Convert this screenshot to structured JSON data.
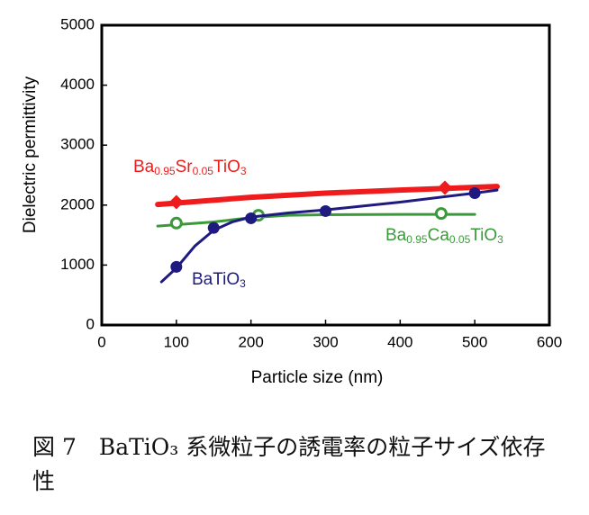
{
  "chart_data": {
    "type": "line",
    "xlabel": "Particle size (nm)",
    "ylabel": "Dielectric permittivity",
    "xlim": [
      0,
      600
    ],
    "xticks": [
      0,
      100,
      200,
      300,
      400,
      500,
      600
    ],
    "ylim": [
      0,
      5000
    ],
    "yticks": [
      0,
      1000,
      2000,
      3000,
      4000,
      5000
    ],
    "series": [
      {
        "name": "Ba0.95Sr0.05TiO3",
        "color": "#ee1c1c",
        "marker": "diamond",
        "x": [
          100,
          460
        ],
        "values": [
          2050,
          2290
        ],
        "curve": {
          "x": [
            75,
            200,
            300,
            400,
            530
          ],
          "values": [
            2010,
            2130,
            2200,
            2250,
            2310
          ]
        }
      },
      {
        "name": "Ba0.95Ca0.05TiO3",
        "color": "#3a9a3a",
        "marker": "open-circle",
        "x": [
          100,
          210,
          455
        ],
        "values": [
          1700,
          1830,
          1860
        ],
        "curve": {
          "x": [
            75,
            150,
            200,
            250,
            300,
            400,
            500
          ],
          "values": [
            1650,
            1720,
            1790,
            1830,
            1840,
            1845,
            1845
          ]
        }
      },
      {
        "name": "BaTiO3",
        "color": "#1f1a80",
        "marker": "circle",
        "x": [
          100,
          150,
          200,
          300,
          500
        ],
        "values": [
          970,
          1620,
          1780,
          1900,
          2200
        ],
        "curve": {
          "x": [
            80,
            100,
            125,
            150,
            175,
            200,
            250,
            300,
            400,
            500,
            530
          ],
          "values": [
            720,
            950,
            1320,
            1580,
            1720,
            1800,
            1870,
            1920,
            2050,
            2200,
            2250
          ]
        }
      }
    ]
  },
  "caption": "図 7　BaTiO₃ 系微粒子の誘電率の粒子サイズ依存性"
}
